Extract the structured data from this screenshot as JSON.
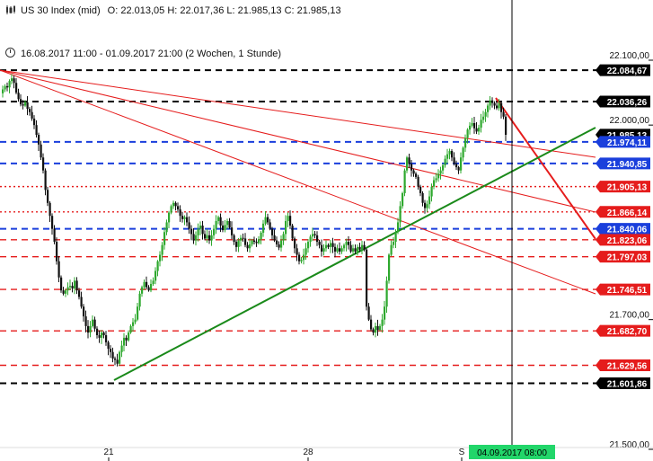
{
  "header": {
    "instrument": "US 30 Index (mid)",
    "ohlc": "O: 22.013,05  H: 22.017,36  L: 21.985,13  C: 21.985,13",
    "icon": "candlestick-icon"
  },
  "range": {
    "text": "16.08.2017 11:00 - 01.09.2017 21:00  (2 Wochen, 1 Stunde)",
    "icon": "clock-icon"
  },
  "crosshair_label": "04.09.2017 08:00",
  "chart_data": {
    "type": "candlestick",
    "title": "US 30 Index (mid)",
    "y_axis": {
      "ticks": [
        22100,
        22000,
        21700,
        21500
      ],
      "tick_labels": [
        "22.100,00",
        "22.000,00",
        "21.700,00",
        "21.500,00"
      ],
      "range": [
        21500,
        22100
      ]
    },
    "x_axis": {
      "tick_labels": [
        "21",
        "28",
        "S"
      ],
      "start": "16.08.2017 11:00",
      "end": "01.09.2017 21:00"
    },
    "levels": [
      {
        "value": 22084.67,
        "label": "22.084,67",
        "color": "#000000",
        "style": "dashed"
      },
      {
        "value": 22036.26,
        "label": "22.036,26",
        "color": "#000000",
        "style": "dashed"
      },
      {
        "value": 21985.13,
        "label": "21.985,13",
        "color": "#000000",
        "style": "current"
      },
      {
        "value": 21974.11,
        "label": "21.974,11",
        "color": "#1a3fdc",
        "style": "dashed"
      },
      {
        "value": 21940.85,
        "label": "21.940,85",
        "color": "#1a3fdc",
        "style": "dashed"
      },
      {
        "value": 21905.13,
        "label": "21.905,13",
        "color": "#e51c1c",
        "style": "dotted"
      },
      {
        "value": 21866.14,
        "label": "21.866,14",
        "color": "#e51c1c",
        "style": "dotted"
      },
      {
        "value": 21840.06,
        "label": "21.840,06",
        "color": "#1a3fdc",
        "style": "dashed"
      },
      {
        "value": 21823.06,
        "label": "21.823,06",
        "color": "#e51c1c",
        "style": "dashed"
      },
      {
        "value": 21797.03,
        "label": "21.797,03",
        "color": "#e51c1c",
        "style": "dashed"
      },
      {
        "value": 21746.51,
        "label": "21.746,51",
        "color": "#e51c1c",
        "style": "dashed"
      },
      {
        "value": 21682.7,
        "label": "21.682,70",
        "color": "#e51c1c",
        "style": "dashed"
      },
      {
        "value": 21629.56,
        "label": "21.629,56",
        "color": "#e51c1c",
        "style": "dashed"
      },
      {
        "value": 21601.86,
        "label": "21.601,86",
        "color": "#000000",
        "style": "dashed"
      }
    ],
    "candles_close": [
      22055,
      22060,
      22058,
      22068,
      22072,
      22065,
      22050,
      22040,
      22032,
      22030,
      22035,
      22025,
      22020,
      22010,
      22000,
      21985,
      21970,
      21950,
      21930,
      21900,
      21880,
      21860,
      21840,
      21820,
      21790,
      21765,
      21745,
      21740,
      21745,
      21750,
      21752,
      21748,
      21760,
      21745,
      21735,
      21720,
      21705,
      21690,
      21680,
      21690,
      21700,
      21686,
      21676,
      21672,
      21680,
      21676,
      21665,
      21655,
      21650,
      21640,
      21638,
      21632,
      21650,
      21660,
      21672,
      21668,
      21680,
      21690,
      21696,
      21700,
      21720,
      21740,
      21750,
      21758,
      21750,
      21745,
      21755,
      21760,
      21775,
      21790,
      21800,
      21815,
      21835,
      21850,
      21865,
      21875,
      21880,
      21875,
      21870,
      21860,
      21855,
      21858,
      21850,
      21840,
      21832,
      21822,
      21830,
      21840,
      21845,
      21832,
      21825,
      21830,
      21822,
      21830,
      21840,
      21852,
      21858,
      21845,
      21838,
      21846,
      21852,
      21842,
      21830,
      21820,
      21812,
      21822,
      21826,
      21825,
      21815,
      21810,
      21816,
      21822,
      21820,
      21818,
      21824,
      21834,
      21848,
      21858,
      21850,
      21840,
      21830,
      21822,
      21816,
      21811,
      21822,
      21832,
      21852,
      21860,
      21845,
      21825,
      21810,
      21800,
      21790,
      21792,
      21800,
      21810,
      21820,
      21828,
      21832,
      21830,
      21820,
      21815,
      21805,
      21810,
      21815,
      21812,
      21818,
      21812,
      21805,
      21810,
      21805,
      21810,
      21815,
      21820,
      21815,
      21805,
      21810,
      21805,
      21812,
      21808,
      21815,
      21808,
      21720,
      21700,
      21685,
      21680,
      21690,
      21684,
      21690,
      21700,
      21720,
      21760,
      21800,
      21815,
      21820,
      21835,
      21850,
      21875,
      21895,
      21930,
      21950,
      21940,
      21930,
      21925,
      21920,
      21905,
      21895,
      21880,
      21872,
      21878,
      21890,
      21905,
      21915,
      21918,
      21925,
      21930,
      21938,
      21948,
      21955,
      21960,
      21950,
      21940,
      21935,
      21930,
      21950,
      21965,
      21980,
      21993,
      21999,
      22003,
      21995,
      21990,
      21996,
      22008,
      22013,
      22020,
      22030,
      22038,
      22034,
      22030,
      22026,
      22034,
      22020,
      22013,
      21985
    ],
    "trend_lines": [
      {
        "color": "#e51c1c",
        "description": "resistance from 22.084 high"
      },
      {
        "color": "#e51c1c",
        "description": "resistance from 22.084 high"
      },
      {
        "color": "#e51c1c",
        "description": "resistance from 22.084 high"
      },
      {
        "color": "#e51c1c",
        "description": "steep line from 22.036 high"
      },
      {
        "color": "#1a8a1a",
        "description": "support from 21.601 low"
      }
    ]
  },
  "colors": {
    "bull": "#2ea82e",
    "bear": "#111111",
    "crosshair_label_bg": "#22d66a"
  }
}
